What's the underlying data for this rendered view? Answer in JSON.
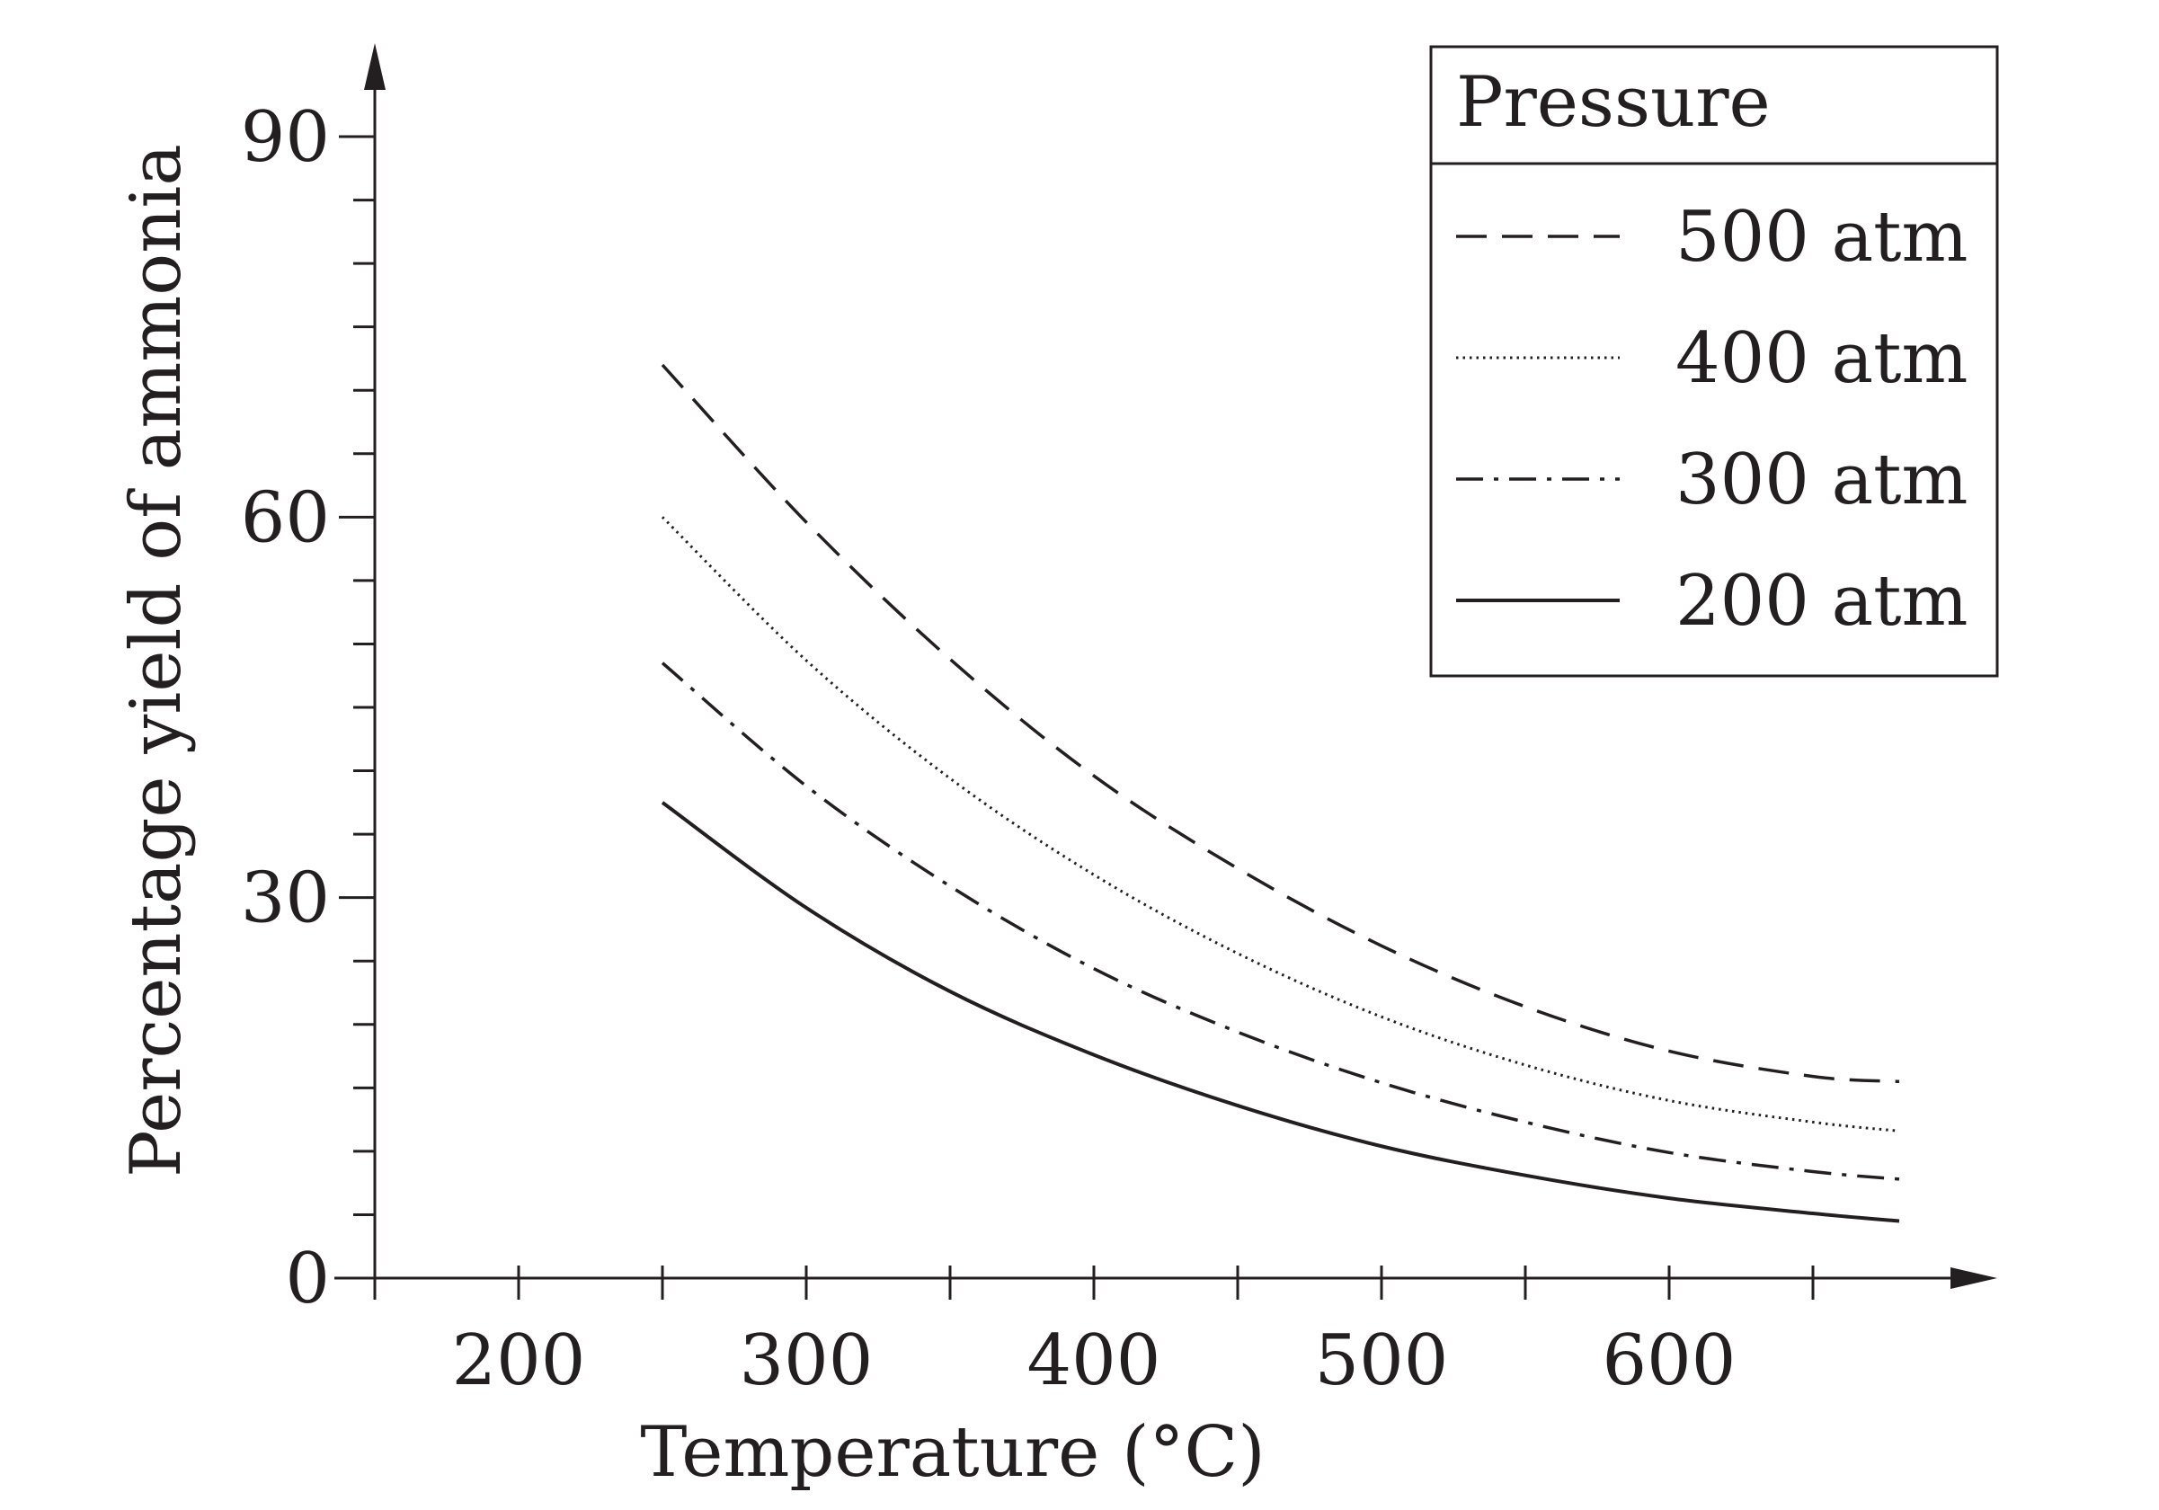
{
  "chart_data": {
    "type": "line",
    "xlabel": "Temperature (°C)",
    "ylabel": "Percentage yield of ammonia",
    "xlim": [
      150,
      700
    ],
    "ylim": [
      0,
      90
    ],
    "x_ticks": [
      200,
      300,
      400,
      500,
      600
    ],
    "x_minor_ticks": [
      150,
      250,
      350,
      450,
      550,
      650
    ],
    "y_ticks": [
      0,
      30,
      60,
      90
    ],
    "y_minor_step": 5,
    "legend": {
      "title": "Pressure",
      "placement": "top-right"
    },
    "grid": false,
    "series": [
      {
        "name": "500 atm",
        "style": "dashed",
        "x": [
          250,
          300,
          350,
          400,
          450,
          500,
          550,
          600,
          650,
          680
        ],
        "y": [
          72,
          59.6,
          48.8,
          39.6,
          32.3,
          26.2,
          21.4,
          17.9,
          15.9,
          15.5
        ]
      },
      {
        "name": "400 atm",
        "style": "dotted",
        "x": [
          250,
          300,
          350,
          400,
          450,
          500,
          550,
          600,
          650,
          680
        ],
        "y": [
          60,
          48.7,
          39.4,
          31.8,
          25.6,
          20.6,
          16.8,
          14.0,
          12.3,
          11.6
        ]
      },
      {
        "name": "300 atm",
        "style": "dash-dot",
        "x": [
          250,
          300,
          350,
          400,
          450,
          500,
          550,
          600,
          650,
          680
        ],
        "y": [
          48.5,
          38.8,
          30.9,
          24.4,
          19.4,
          15.4,
          12.3,
          9.9,
          8.4,
          7.8
        ]
      },
      {
        "name": "200 atm",
        "style": "solid",
        "x": [
          250,
          300,
          350,
          400,
          450,
          500,
          550,
          600,
          650,
          680
        ],
        "y": [
          37.5,
          29.2,
          22.6,
          17.6,
          13.6,
          10.4,
          8.1,
          6.3,
          5.1,
          4.5
        ]
      }
    ]
  }
}
